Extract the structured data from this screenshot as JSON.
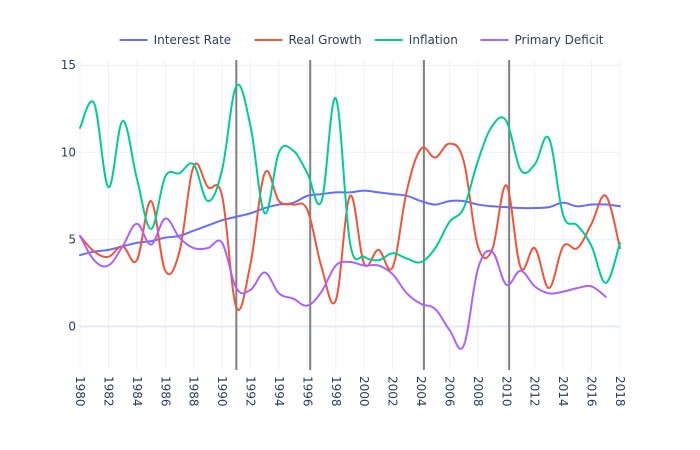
{
  "chart_data": {
    "type": "line",
    "xlim": [
      1980,
      2018
    ],
    "ylim": [
      -2.5,
      15.3
    ],
    "x_ticks": [
      "1980",
      "1982",
      "1984",
      "1986",
      "1988",
      "1990",
      "1992",
      "1994",
      "1996",
      "1998",
      "2000",
      "2002",
      "2004",
      "2006",
      "2008",
      "2010",
      "2012",
      "2014",
      "2016",
      "2018"
    ],
    "y_ticks": [
      "0",
      "5",
      "10",
      "15"
    ],
    "grid": true,
    "legend_position": "top-right",
    "vertical_lines": [
      1991,
      1996.2,
      2004.2,
      2010.2
    ],
    "series": [
      {
        "name": "Interest Rate",
        "color": "#636efa",
        "x": [
          1980,
          1981,
          1982,
          1983,
          1984,
          1985,
          1986,
          1987,
          1988,
          1989,
          1990,
          1991,
          1992,
          1993,
          1994,
          1995,
          1996,
          1997,
          1998,
          1999,
          2000,
          2001,
          2002,
          2003,
          2004,
          2005,
          2006,
          2007,
          2008,
          2009,
          2010,
          2011,
          2012,
          2013,
          2014,
          2015,
          2016,
          2017,
          2018
        ],
        "values": [
          4.1,
          4.3,
          4.4,
          4.6,
          4.8,
          4.9,
          5.1,
          5.2,
          5.5,
          5.8,
          6.1,
          6.3,
          6.5,
          6.8,
          7.0,
          7.1,
          7.5,
          7.6,
          7.7,
          7.7,
          7.8,
          7.7,
          7.6,
          7.5,
          7.2,
          7.0,
          7.2,
          7.2,
          7.0,
          6.9,
          6.85,
          6.8,
          6.8,
          6.85,
          7.1,
          6.9,
          7.0,
          7.0,
          6.9
        ]
      },
      {
        "name": "Real Growth",
        "color": "#ef553b",
        "x": [
          1980,
          1981,
          1982,
          1983,
          1984,
          1985,
          1986,
          1987,
          1988,
          1989,
          1990,
          1991,
          1992,
          1993,
          1994,
          1995,
          1996,
          1997,
          1998,
          1999,
          2000,
          2001,
          2002,
          2003,
          2004,
          2005,
          2006,
          2007,
          2008,
          2009,
          2010,
          2011,
          2012,
          2013,
          2014,
          2015,
          2016,
          2017,
          2018
        ],
        "values": [
          5.2,
          4.3,
          4.0,
          4.6,
          3.8,
          7.2,
          3.2,
          4.3,
          9.2,
          8.0,
          7.5,
          1.1,
          3.6,
          8.8,
          7.2,
          7.0,
          6.7,
          3.4,
          1.5,
          7.5,
          3.6,
          4.4,
          3.4,
          7.8,
          10.2,
          9.7,
          10.5,
          9.5,
          4.6,
          4.4,
          8.1,
          3.4,
          4.5,
          2.2,
          4.6,
          4.5,
          5.9,
          7.5,
          4.5
        ]
      },
      {
        "name": "Inflation",
        "color": "#00cc96",
        "x": [
          1980,
          1981,
          1982,
          1983,
          1984,
          1985,
          1986,
          1987,
          1988,
          1989,
          1990,
          1991,
          1992,
          1993,
          1994,
          1995,
          1996,
          1997,
          1998,
          1999,
          2000,
          2001,
          2002,
          2003,
          2004,
          2005,
          2006,
          2007,
          2008,
          2009,
          2010,
          2011,
          2012,
          2013,
          2014,
          2015,
          2016,
          2017,
          2018
        ],
        "values": [
          11.4,
          12.8,
          8.0,
          11.8,
          8.5,
          5.6,
          8.6,
          8.8,
          9.3,
          7.2,
          9.0,
          13.8,
          11.5,
          6.5,
          10.0,
          10.1,
          8.8,
          7.2,
          13.1,
          4.8,
          4.0,
          3.8,
          4.2,
          3.9,
          3.7,
          4.5,
          6.0,
          6.8,
          9.5,
          11.5,
          11.8,
          9.0,
          9.3,
          10.8,
          6.4,
          5.8,
          4.6,
          2.5,
          4.8
        ]
      },
      {
        "name": "Primary Deficit",
        "color": "#ab63fa",
        "x": [
          1980,
          1981,
          1982,
          1983,
          1984,
          1985,
          1986,
          1987,
          1988,
          1989,
          1990,
          1991,
          1992,
          1993,
          1994,
          1995,
          1996,
          1997,
          1998,
          1999,
          2000,
          2001,
          2002,
          2003,
          2004,
          2005,
          2006,
          2007,
          2008,
          2009,
          2010,
          2011,
          2012,
          2013,
          2014,
          2015,
          2016,
          2017
        ],
        "values": [
          5.2,
          3.8,
          3.5,
          4.6,
          5.9,
          4.7,
          6.2,
          5.1,
          4.5,
          4.5,
          4.8,
          2.2,
          2.1,
          3.1,
          1.9,
          1.6,
          1.2,
          2.0,
          3.5,
          3.7,
          3.5,
          3.5,
          3.0,
          1.9,
          1.3,
          1.0,
          -0.2,
          -1.1,
          3.3,
          4.3,
          2.4,
          3.2,
          2.3,
          1.9,
          2.0,
          2.2,
          2.3,
          1.7
        ]
      }
    ]
  }
}
